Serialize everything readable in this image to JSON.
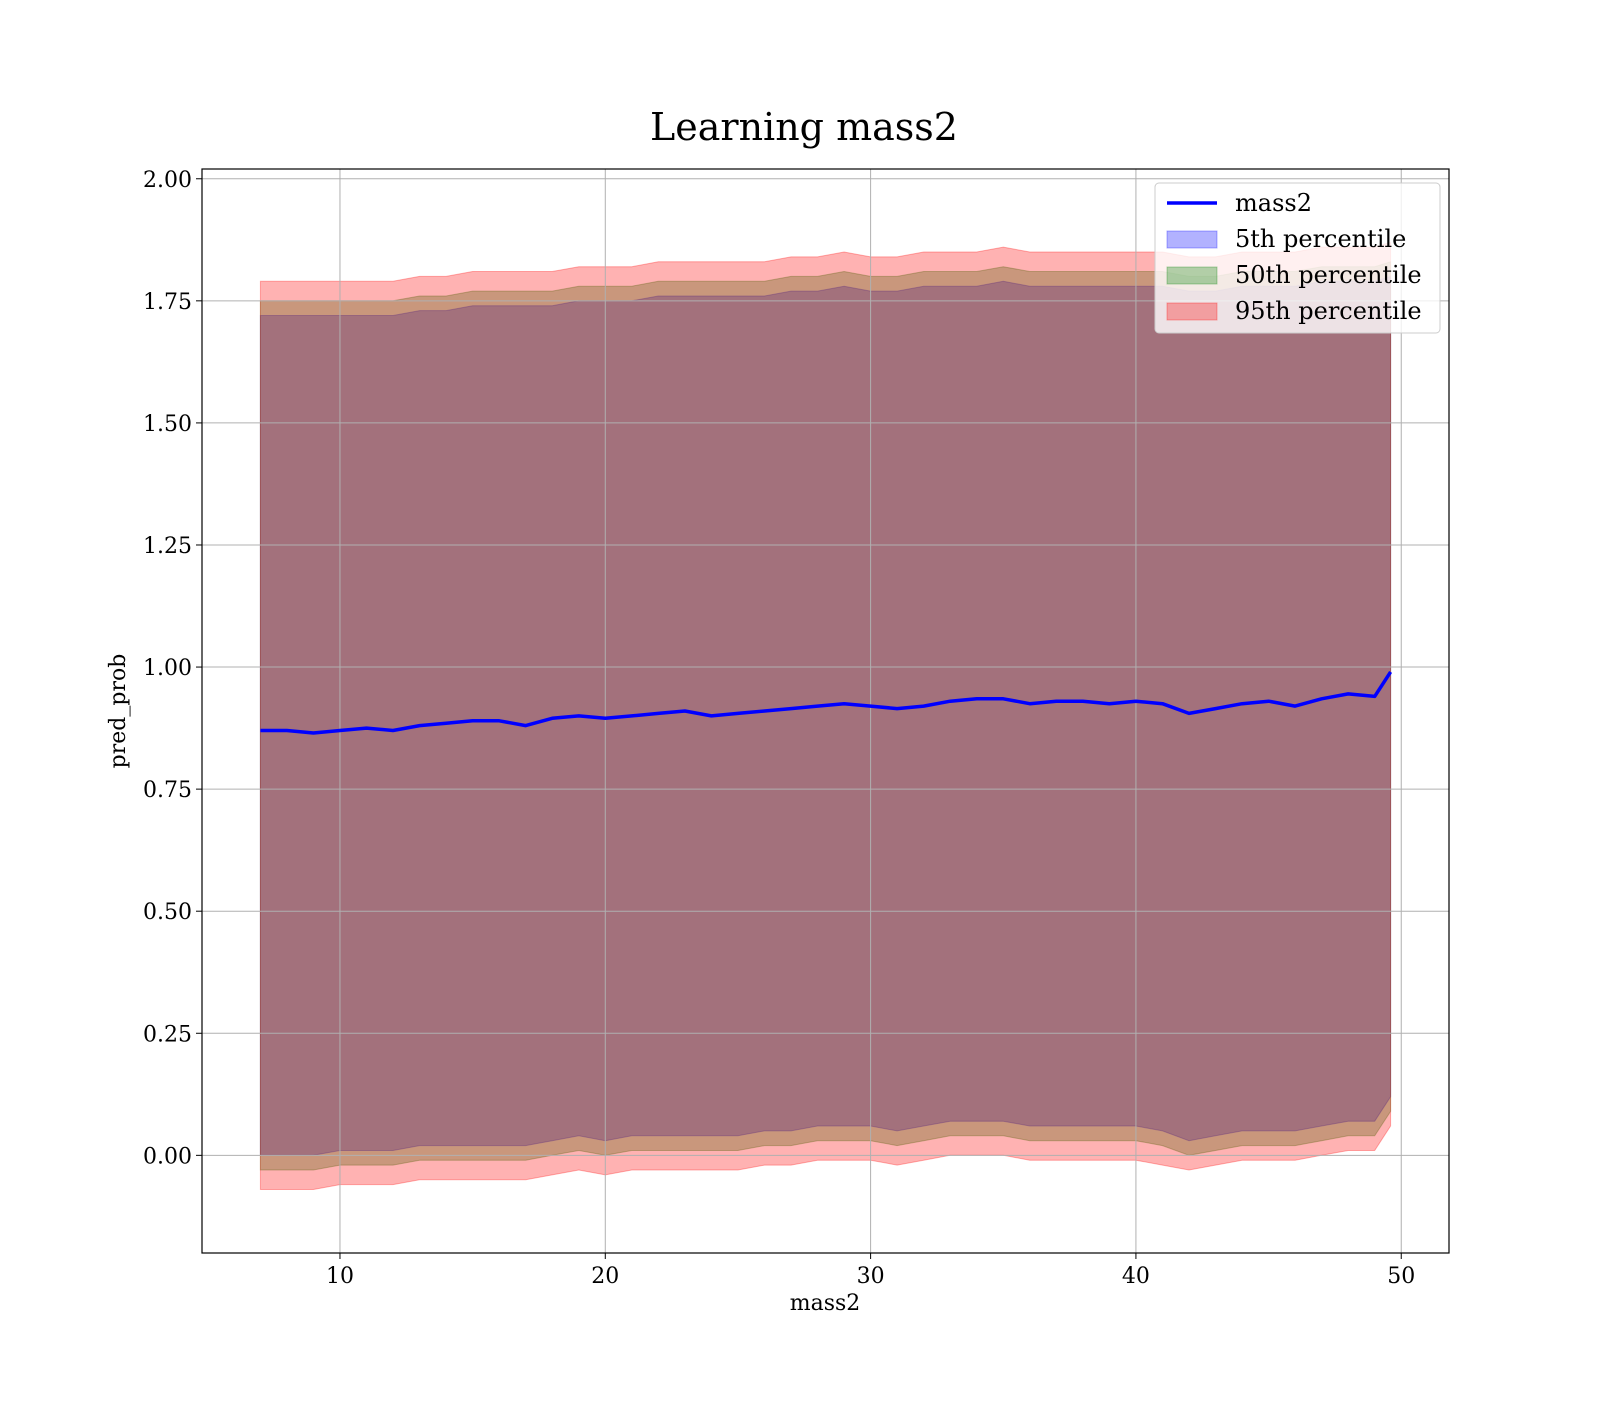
{
  "chart_data": {
    "type": "area",
    "title": "Learning mass2",
    "xlabel": "mass2",
    "ylabel": "pred_prob",
    "xlim": [
      4.8,
      51.8
    ],
    "ylim": [
      -0.2,
      2.02
    ],
    "xticks": [
      10,
      20,
      30,
      40,
      50
    ],
    "xtick_labels": [
      "10",
      "20",
      "30",
      "40",
      "50"
    ],
    "yticks": [
      0.0,
      0.25,
      0.5,
      0.75,
      1.0,
      1.25,
      1.5,
      1.75,
      2.0
    ],
    "ytick_labels": [
      "0.00",
      "0.25",
      "0.50",
      "0.75",
      "1.00",
      "1.25",
      "1.50",
      "1.75",
      "2.00"
    ],
    "grid": true,
    "legend_position": "top-right",
    "x": [
      7.0,
      8.0,
      9.0,
      10.0,
      11.0,
      12.0,
      13.0,
      14.0,
      15.0,
      16.0,
      17.0,
      18.0,
      19.0,
      20.0,
      21.0,
      22.0,
      23.0,
      24.0,
      25.0,
      26.0,
      27.0,
      28.0,
      29.0,
      30.0,
      31.0,
      32.0,
      33.0,
      34.0,
      35.0,
      36.0,
      37.0,
      38.0,
      39.0,
      40.0,
      41.0,
      42.0,
      43.0,
      44.0,
      45.0,
      46.0,
      47.0,
      48.0,
      49.0,
      49.6
    ],
    "series": [
      {
        "name": "mass2",
        "kind": "line",
        "color": "#0000ff",
        "values": [
          0.87,
          0.87,
          0.865,
          0.87,
          0.875,
          0.87,
          0.88,
          0.885,
          0.89,
          0.89,
          0.88,
          0.895,
          0.9,
          0.895,
          0.9,
          0.905,
          0.91,
          0.9,
          0.905,
          0.91,
          0.915,
          0.92,
          0.925,
          0.92,
          0.915,
          0.92,
          0.93,
          0.935,
          0.935,
          0.925,
          0.93,
          0.93,
          0.925,
          0.93,
          0.925,
          0.905,
          0.915,
          0.925,
          0.93,
          0.92,
          0.935,
          0.945,
          0.94,
          0.99
        ]
      },
      {
        "name": "5th percentile",
        "kind": "band",
        "color": "#0000ff",
        "lower": [
          0.0,
          0.0,
          0.0,
          0.01,
          0.01,
          0.01,
          0.02,
          0.02,
          0.02,
          0.02,
          0.02,
          0.03,
          0.04,
          0.03,
          0.04,
          0.04,
          0.04,
          0.04,
          0.04,
          0.05,
          0.05,
          0.06,
          0.06,
          0.06,
          0.05,
          0.06,
          0.07,
          0.07,
          0.07,
          0.06,
          0.06,
          0.06,
          0.06,
          0.06,
          0.05,
          0.03,
          0.04,
          0.05,
          0.05,
          0.05,
          0.06,
          0.07,
          0.07,
          0.12
        ],
        "upper": [
          1.72,
          1.72,
          1.72,
          1.72,
          1.72,
          1.72,
          1.73,
          1.73,
          1.74,
          1.74,
          1.74,
          1.74,
          1.75,
          1.75,
          1.75,
          1.76,
          1.76,
          1.76,
          1.76,
          1.76,
          1.77,
          1.77,
          1.78,
          1.77,
          1.77,
          1.78,
          1.78,
          1.78,
          1.79,
          1.78,
          1.78,
          1.78,
          1.78,
          1.78,
          1.78,
          1.77,
          1.77,
          1.78,
          1.78,
          1.78,
          1.79,
          1.79,
          1.79,
          1.8
        ]
      },
      {
        "name": "50th percentile",
        "kind": "band",
        "color": "#008000",
        "lower": [
          -0.03,
          -0.03,
          -0.03,
          -0.02,
          -0.02,
          -0.02,
          -0.01,
          -0.01,
          -0.01,
          -0.01,
          -0.01,
          0.0,
          0.01,
          0.0,
          0.01,
          0.01,
          0.01,
          0.01,
          0.01,
          0.02,
          0.02,
          0.03,
          0.03,
          0.03,
          0.02,
          0.03,
          0.04,
          0.04,
          0.04,
          0.03,
          0.03,
          0.03,
          0.03,
          0.03,
          0.02,
          0.0,
          0.01,
          0.02,
          0.02,
          0.02,
          0.03,
          0.04,
          0.04,
          0.09
        ],
        "upper": [
          1.75,
          1.75,
          1.75,
          1.75,
          1.75,
          1.75,
          1.76,
          1.76,
          1.77,
          1.77,
          1.77,
          1.77,
          1.78,
          1.78,
          1.78,
          1.79,
          1.79,
          1.79,
          1.79,
          1.79,
          1.8,
          1.8,
          1.81,
          1.8,
          1.8,
          1.81,
          1.81,
          1.81,
          1.82,
          1.81,
          1.81,
          1.81,
          1.81,
          1.81,
          1.81,
          1.8,
          1.8,
          1.81,
          1.81,
          1.81,
          1.82,
          1.82,
          1.82,
          1.83
        ]
      },
      {
        "name": "95th percentile",
        "kind": "band",
        "color": "#ff0000",
        "lower": [
          -0.07,
          -0.07,
          -0.07,
          -0.06,
          -0.06,
          -0.06,
          -0.05,
          -0.05,
          -0.05,
          -0.05,
          -0.05,
          -0.04,
          -0.03,
          -0.04,
          -0.03,
          -0.03,
          -0.03,
          -0.03,
          -0.03,
          -0.02,
          -0.02,
          -0.01,
          -0.01,
          -0.01,
          -0.02,
          -0.01,
          0.0,
          0.0,
          0.0,
          -0.01,
          -0.01,
          -0.01,
          -0.01,
          -0.01,
          -0.02,
          -0.03,
          -0.02,
          -0.01,
          -0.01,
          -0.01,
          0.0,
          0.01,
          0.01,
          0.06
        ],
        "upper": [
          1.79,
          1.79,
          1.79,
          1.79,
          1.79,
          1.79,
          1.8,
          1.8,
          1.81,
          1.81,
          1.81,
          1.81,
          1.82,
          1.82,
          1.82,
          1.83,
          1.83,
          1.83,
          1.83,
          1.83,
          1.84,
          1.84,
          1.85,
          1.84,
          1.84,
          1.85,
          1.85,
          1.85,
          1.86,
          1.85,
          1.85,
          1.85,
          1.85,
          1.85,
          1.85,
          1.84,
          1.84,
          1.85,
          1.85,
          1.85,
          1.86,
          1.86,
          1.86,
          1.87
        ]
      }
    ]
  }
}
